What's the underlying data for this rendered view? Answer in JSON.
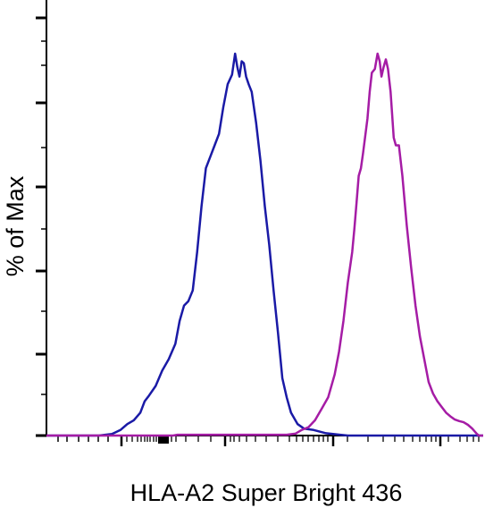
{
  "chart_data": {
    "type": "line",
    "title": "",
    "xlabel": "HLA-A2 Super Bright 436",
    "ylabel": "% of Max",
    "x_scale": "log",
    "grid": false,
    "legend": "none",
    "series": [
      {
        "color": "#1a1aa6",
        "points": [
          [
            0.0,
            0
          ],
          [
            0.12,
            0
          ],
          [
            0.15,
            0.4
          ],
          [
            0.17,
            1.5
          ],
          [
            0.185,
            3
          ],
          [
            0.2,
            4
          ],
          [
            0.215,
            6
          ],
          [
            0.225,
            9
          ],
          [
            0.235,
            10.5
          ],
          [
            0.25,
            13
          ],
          [
            0.265,
            17
          ],
          [
            0.28,
            20
          ],
          [
            0.295,
            24
          ],
          [
            0.305,
            30
          ],
          [
            0.315,
            34
          ],
          [
            0.325,
            35.2
          ],
          [
            0.335,
            38
          ],
          [
            0.345,
            48
          ],
          [
            0.355,
            60
          ],
          [
            0.365,
            70
          ],
          [
            0.375,
            73
          ],
          [
            0.385,
            76
          ],
          [
            0.395,
            79
          ],
          [
            0.405,
            86
          ],
          [
            0.415,
            92
          ],
          [
            0.425,
            94.5
          ],
          [
            0.432,
            100
          ],
          [
            0.437,
            96.5
          ],
          [
            0.442,
            94
          ],
          [
            0.447,
            98
          ],
          [
            0.452,
            97.5
          ],
          [
            0.457,
            94
          ],
          [
            0.463,
            92
          ],
          [
            0.47,
            90
          ],
          [
            0.48,
            82
          ],
          [
            0.49,
            72
          ],
          [
            0.5,
            60
          ],
          [
            0.51,
            50
          ],
          [
            0.52,
            38
          ],
          [
            0.53,
            27
          ],
          [
            0.54,
            15
          ],
          [
            0.55,
            10
          ],
          [
            0.56,
            6
          ],
          [
            0.575,
            3
          ],
          [
            0.59,
            1.8
          ],
          [
            0.61,
            1.5
          ],
          [
            0.64,
            0.6
          ],
          [
            0.69,
            0
          ],
          [
            1.0,
            0
          ]
        ]
      },
      {
        "color": "#a51ca5",
        "points": [
          [
            0.0,
            0
          ],
          [
            0.29,
            0
          ],
          [
            0.3,
            0.2
          ],
          [
            0.32,
            0.2
          ],
          [
            0.34,
            0.2
          ],
          [
            0.36,
            0.2
          ],
          [
            0.4,
            0.2
          ],
          [
            0.45,
            0.2
          ],
          [
            0.5,
            0.2
          ],
          [
            0.55,
            0.2
          ],
          [
            0.57,
            0.5
          ],
          [
            0.585,
            1.5
          ],
          [
            0.6,
            2.2
          ],
          [
            0.615,
            4
          ],
          [
            0.63,
            7
          ],
          [
            0.645,
            10
          ],
          [
            0.66,
            16
          ],
          [
            0.67,
            22
          ],
          [
            0.68,
            30
          ],
          [
            0.69,
            40
          ],
          [
            0.7,
            48
          ],
          [
            0.705,
            54
          ],
          [
            0.71,
            61
          ],
          [
            0.715,
            68
          ],
          [
            0.72,
            70
          ],
          [
            0.725,
            74
          ],
          [
            0.735,
            83
          ],
          [
            0.74,
            90
          ],
          [
            0.745,
            95
          ],
          [
            0.752,
            96
          ],
          [
            0.758,
            100
          ],
          [
            0.763,
            98
          ],
          [
            0.767,
            94
          ],
          [
            0.772,
            96.5
          ],
          [
            0.777,
            98.5
          ],
          [
            0.782,
            96
          ],
          [
            0.788,
            90
          ],
          [
            0.795,
            78
          ],
          [
            0.8,
            76
          ],
          [
            0.807,
            76
          ],
          [
            0.815,
            68
          ],
          [
            0.825,
            55
          ],
          [
            0.835,
            44
          ],
          [
            0.845,
            34
          ],
          [
            0.855,
            26
          ],
          [
            0.865,
            20
          ],
          [
            0.875,
            14
          ],
          [
            0.885,
            11
          ],
          [
            0.895,
            9
          ],
          [
            0.905,
            7.5
          ],
          [
            0.915,
            6
          ],
          [
            0.925,
            5
          ],
          [
            0.935,
            4.2
          ],
          [
            0.945,
            3.8
          ],
          [
            0.955,
            3.5
          ],
          [
            0.965,
            2.8
          ],
          [
            0.975,
            1.8
          ],
          [
            0.985,
            0.5
          ],
          [
            0.99,
            0
          ],
          [
            1.0,
            0
          ]
        ]
      }
    ]
  }
}
